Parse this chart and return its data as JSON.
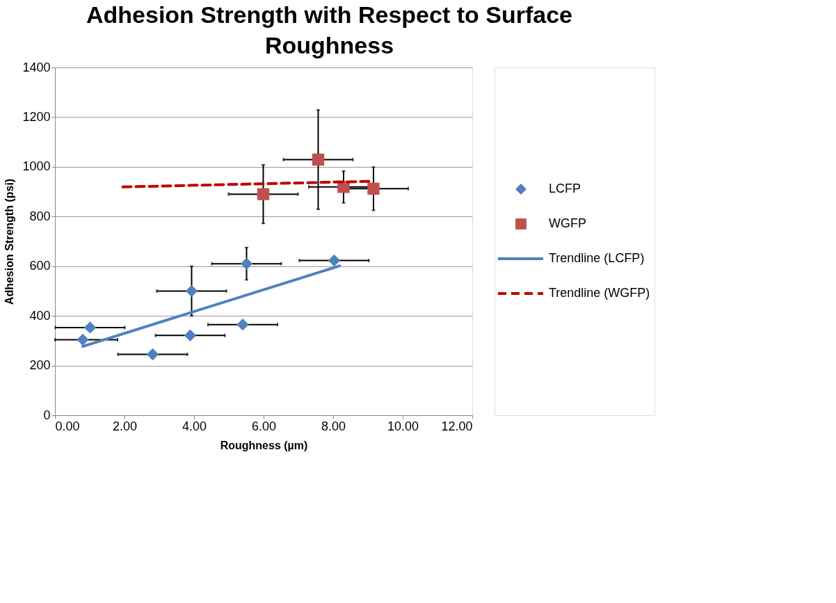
{
  "chart_data": {
    "type": "scatter",
    "title": "Adhesion Strength with Respect to Surface Roughness",
    "xlabel": "Roughness (µm)",
    "ylabel": "Adhesion Strength (psi)",
    "xlim": [
      0,
      12
    ],
    "xticks": [
      {
        "value": 0,
        "label": "0.00"
      },
      {
        "value": 2,
        "label": "2.00"
      },
      {
        "value": 4,
        "label": "4.00"
      },
      {
        "value": 6,
        "label": "6.00"
      },
      {
        "value": 8,
        "label": "8.00"
      },
      {
        "value": 10,
        "label": "10.00"
      },
      {
        "value": 12,
        "label": "12.00"
      }
    ],
    "ylim": [
      0,
      1400
    ],
    "yticks": [
      0,
      200,
      400,
      600,
      800,
      1000,
      1200,
      1400
    ],
    "grid": "y",
    "legend": "right",
    "series": [
      {
        "name": "LCFP",
        "color": "#4f81bd",
        "marker": "diamond",
        "x": [
          0.8,
          1.01,
          2.81,
          3.89,
          3.93,
          5.4,
          5.51,
          8.03
        ],
        "values": [
          304,
          353,
          245,
          321,
          500,
          365,
          610,
          623
        ],
        "errors": [
          null,
          null,
          null,
          null,
          100,
          null,
          65,
          null
        ],
        "xerrors": [
          [
            0,
            1.8
          ],
          1,
          1,
          1,
          1,
          1,
          1,
          1
        ]
      },
      {
        "name": "WGFP",
        "color": "#c0504d",
        "marker": "square",
        "x": [
          5.99,
          7.57,
          8.3,
          9.16
        ],
        "values": [
          890,
          1029,
          919,
          912
        ],
        "errors": [
          118,
          200,
          64,
          87
        ],
        "xerrors": [
          1,
          1,
          1,
          1
        ]
      },
      {
        "name": "Trendline (LCFP)",
        "type": "line",
        "color": "#4f81bd",
        "line_style": "solid",
        "x": [
          0.8,
          8.18
        ],
        "values": [
          277,
          601
        ]
      },
      {
        "name": "Trendline (WGFP)",
        "type": "line",
        "color": "#c00000",
        "line_style": "dashed",
        "x": [
          1.95,
          9.16
        ],
        "values": [
          919,
          942
        ]
      }
    ]
  }
}
